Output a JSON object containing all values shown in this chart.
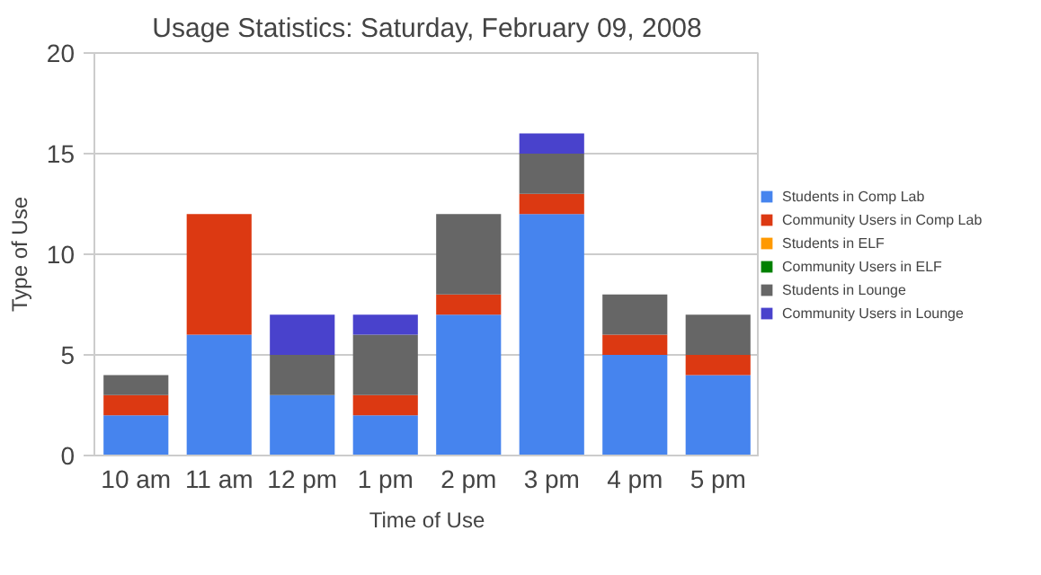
{
  "chart_data": {
    "type": "bar",
    "title": "Usage Statistics: Saturday, February 09, 2008",
    "xlabel": "Time of Use",
    "ylabel": "Type of Use",
    "categories": [
      "10 am",
      "11 am",
      "12 pm",
      "1 pm",
      "2 pm",
      "3 pm",
      "4 pm",
      "5 pm"
    ],
    "stacked": true,
    "series": [
      {
        "name": "Students in Comp Lab",
        "color": "#4684ee",
        "values": [
          2,
          6,
          3,
          2,
          7,
          12,
          5,
          4
        ]
      },
      {
        "name": "Community Users in Comp Lab",
        "color": "#dc3912",
        "values": [
          1,
          6,
          0,
          1,
          1,
          1,
          1,
          1
        ]
      },
      {
        "name": "Students in ELF",
        "color": "#ff9900",
        "values": [
          0,
          0,
          0,
          0,
          0,
          0,
          0,
          0
        ]
      },
      {
        "name": "Community Users in ELF",
        "color": "#008000",
        "values": [
          0,
          0,
          0,
          0,
          0,
          0,
          0,
          0
        ]
      },
      {
        "name": "Students in Lounge",
        "color": "#666666",
        "values": [
          1,
          0,
          2,
          3,
          4,
          2,
          2,
          2
        ]
      },
      {
        "name": "Community Users in Lounge",
        "color": "#4942cc",
        "values": [
          0,
          0,
          2,
          1,
          0,
          1,
          0,
          0
        ]
      }
    ],
    "ylim": [
      0,
      20
    ],
    "yticks": [
      0,
      5,
      10,
      15,
      20
    ],
    "grid": "y",
    "legend": "right"
  }
}
